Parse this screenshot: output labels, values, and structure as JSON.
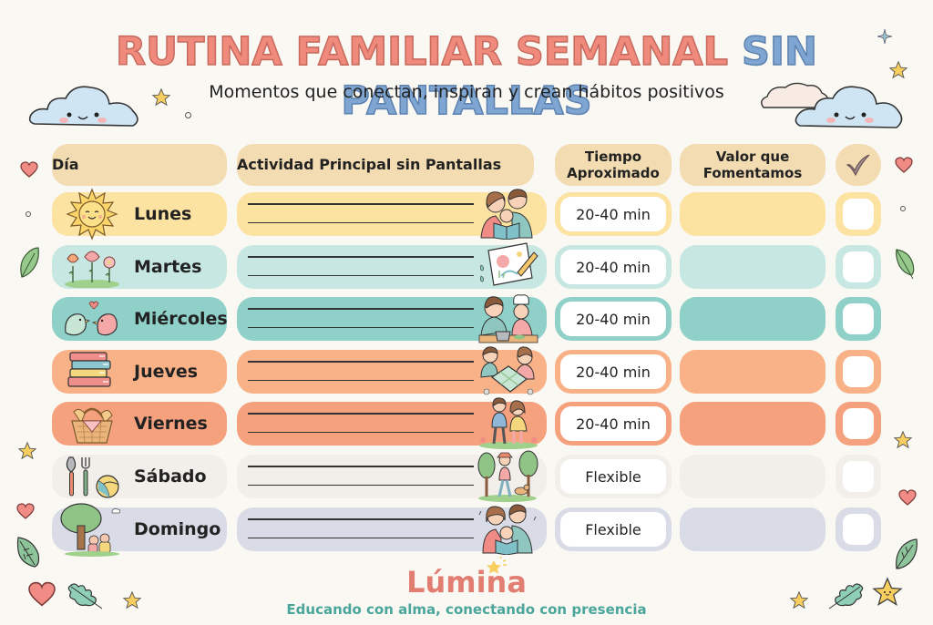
{
  "header": {
    "title_part1": "RUTINA FAMILIAR SEMANAL",
    "title_part2": "SIN PANTALLAS",
    "subtitle": "Momentos que conectan, inspiran y crean hábitos positivos"
  },
  "table": {
    "columns": {
      "day": "Día",
      "activity": "Actividad Principal sin Pantallas",
      "time_line1": "Tiempo",
      "time_line2": "Aproximado",
      "value_line1": "Valor que",
      "value_line2": "Fomentamos",
      "check_icon": "checkmark-icon"
    },
    "rows": [
      {
        "day": "Lunes",
        "time": "20-40 min",
        "icon": "sun-icon",
        "illustration": "family-reading-icon",
        "color": "#fde3a1",
        "cell_border": "#fde3a1"
      },
      {
        "day": "Martes",
        "time": "20-40 min",
        "icon": "flowers-icon",
        "illustration": "drawing-icon",
        "color": "#c7e8e2",
        "cell_border": "#c7e8e2"
      },
      {
        "day": "Miércoles",
        "time": "20-40 min",
        "icon": "birds-icon",
        "illustration": "cooking-icon",
        "color": "#8fd0c8",
        "cell_border": "#8fd0c8"
      },
      {
        "day": "Jueves",
        "time": "20-40 min",
        "icon": "books-icon",
        "illustration": "puzzle-icon",
        "color": "#f9b187",
        "cell_border": "#f9b187"
      },
      {
        "day": "Viernes",
        "time": "20-40 min",
        "icon": "picnic-basket-icon",
        "illustration": "walk-icon",
        "color": "#f5a17d",
        "cell_border": "#f5a17d"
      },
      {
        "day": "Sábado",
        "time": "Flexible",
        "icon": "garden-tools-ball-icon",
        "illustration": "hiking-dog-icon",
        "color": "#f2efea",
        "cell_border": "#f2efea"
      },
      {
        "day": "Domingo",
        "time": "Flexible",
        "icon": "tree-picnic-icon",
        "illustration": "family-storytime-icon",
        "color": "#d9dbe6",
        "cell_border": "#d9dbe6"
      }
    ]
  },
  "footer": {
    "brand": "Lúmina",
    "tagline": "Educando con alma, conectando con presencia"
  },
  "colors": {
    "title_pink": "#ef8a7c",
    "title_blue": "#7fa6d3",
    "header_beige": "#f3dcb1",
    "brand": "#e27d72",
    "tagline": "#4aa59a"
  }
}
